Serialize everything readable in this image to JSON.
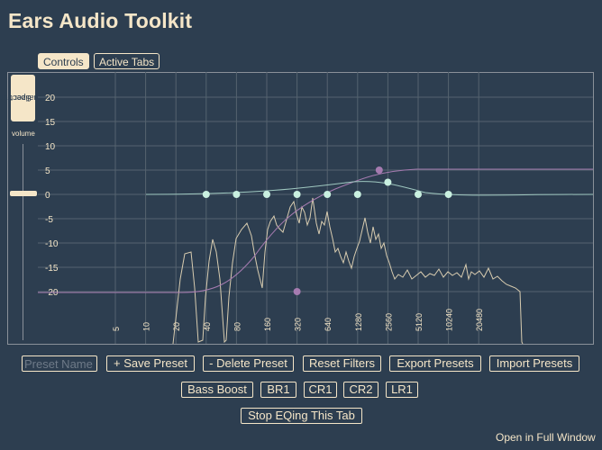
{
  "app": {
    "title": "Ears Audio Toolkit"
  },
  "tabs": [
    {
      "label": "Controls",
      "active": true
    },
    {
      "label": "Active Tabs",
      "active": false
    }
  ],
  "sidebar": {
    "spectrum_button_line1": "Spectrum",
    "spectrum_button_line2": "Visualizer",
    "volume_label": "volume"
  },
  "graph": {
    "y_ticks": [
      "20",
      "15",
      "10",
      "5",
      "0",
      "-5",
      "-10",
      "-15",
      "-20"
    ],
    "x_ticks": [
      "5",
      "10",
      "20",
      "40",
      "80",
      "160",
      "320",
      "640",
      "1280",
      "2560",
      "5120",
      "10240",
      "20480"
    ],
    "filter_nodes": [
      {
        "freq": 40,
        "gain": 0,
        "color": "#c9f0e0"
      },
      {
        "freq": 80,
        "gain": 0,
        "color": "#c9f0e0"
      },
      {
        "freq": 160,
        "gain": 0,
        "color": "#c9f0e0"
      },
      {
        "freq": 320,
        "gain": 0,
        "color": "#c9f0e0"
      },
      {
        "freq": 640,
        "gain": 0,
        "color": "#c9f0e0"
      },
      {
        "freq": 1280,
        "gain": 0,
        "color": "#c9f0e0"
      },
      {
        "freq": 2560,
        "gain": 2.5,
        "color": "#c9f0e0"
      },
      {
        "freq": 5120,
        "gain": 0,
        "color": "#c9f0e0"
      },
      {
        "freq": 10240,
        "gain": 0,
        "color": "#c9f0e0"
      },
      {
        "freq": 2100,
        "gain": 5,
        "color": "#a57bb0"
      },
      {
        "freq": 320,
        "gain": -20,
        "color": "#a57bb0"
      }
    ],
    "colors": {
      "grid": "#55636f",
      "spectrum": "#d8ccb0",
      "curve": "#a57bb0",
      "peak": "#9fc8c0"
    }
  },
  "preset": {
    "placeholder": "Preset Name"
  },
  "buttons": {
    "save_preset": "+ Save Preset",
    "delete_preset": "- Delete Preset",
    "reset_filters": "Reset Filters",
    "export_presets": "Export Presets",
    "import_presets": "Import Presets",
    "bass_boost": "Bass Boost",
    "br1": "BR1",
    "cr1": "CR1",
    "cr2": "CR2",
    "lr1": "LR1",
    "stop_eq": "Stop EQing This Tab"
  },
  "footer": {
    "open_full_window": "Open in Full Window"
  }
}
